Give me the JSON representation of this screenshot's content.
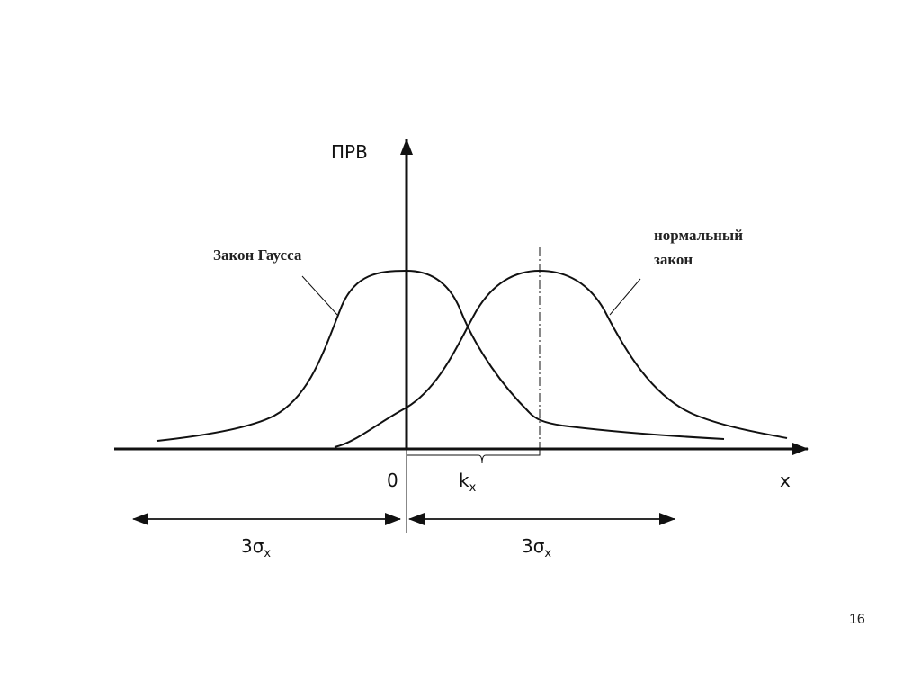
{
  "diagram": {
    "y_axis_label": "ПРВ",
    "x_axis_label": "x",
    "origin_label": "0",
    "offset_label": {
      "main": "k",
      "sub": "x"
    },
    "curve_left_label": "Закон Гаусса",
    "curve_right_label": [
      "нормальный",
      "закон"
    ],
    "span_left_label": {
      "main": "3σ",
      "sub": "x"
    },
    "span_right_label": {
      "main": "3σ",
      "sub": "x"
    },
    "line_color": "#111111"
  },
  "page_number": "16"
}
